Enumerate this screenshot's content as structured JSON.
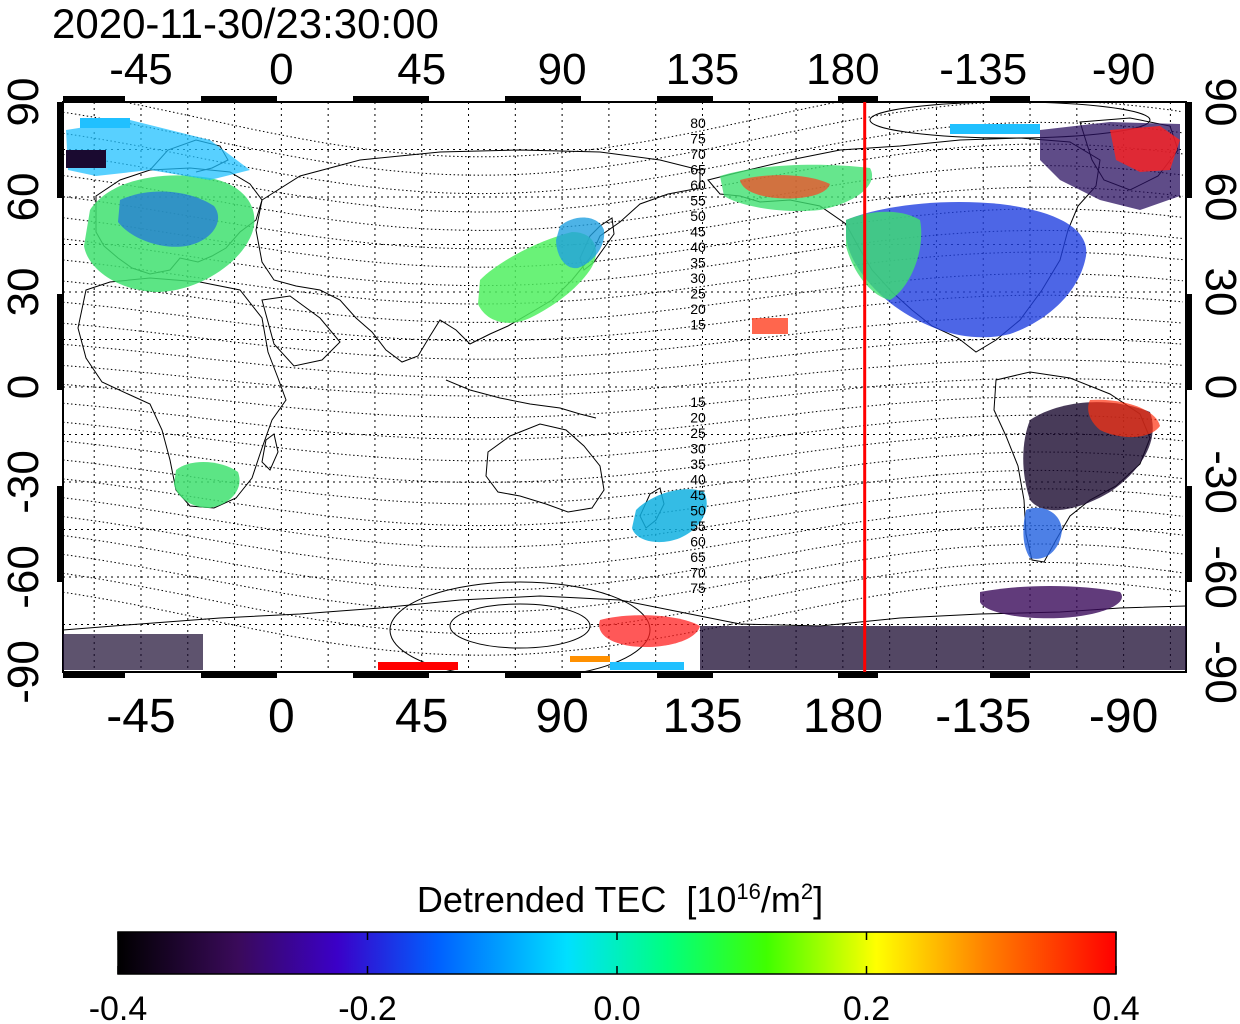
{
  "map": {
    "timestamp": "2020-11-30/23:30:00",
    "projection": "equirectangular",
    "center_longitude": 110,
    "lon_ticks_top": [
      "0",
      "45",
      "90",
      "135",
      "180",
      "-135",
      "-90",
      "-45"
    ],
    "lon_ticks_bottom": [
      "0",
      "45",
      "90",
      "135",
      "180",
      "-135",
      "-90",
      "-45"
    ],
    "lat_ticks_left": [
      "90",
      "60",
      "30",
      "0",
      "-30",
      "-60",
      "-90"
    ],
    "lat_ticks_right": [
      "90",
      "60",
      "30",
      "0",
      "-30",
      "-60",
      "-90"
    ],
    "terminator_longitude": 187,
    "terminator_color": "#ff0000",
    "contour_labels_north": [
      "80",
      "75",
      "70",
      "65",
      "60",
      "55",
      "50",
      "45",
      "40",
      "35",
      "30",
      "25",
      "20",
      "15"
    ],
    "contour_labels_south": [
      "15",
      "20",
      "25",
      "30",
      "35",
      "40",
      "45",
      "50",
      "55",
      "60",
      "65",
      "70",
      "75"
    ],
    "grid": "dotted"
  },
  "colorbar": {
    "title": "Detrended TEC",
    "unit_prefix": "[10",
    "unit_exp1": "16",
    "unit_mid": "/m",
    "unit_exp2": "2",
    "unit_suffix": "]",
    "min": -0.4,
    "max": 0.4,
    "tick_labels": [
      "-0.4",
      "-0.2",
      "0.0",
      "0.2",
      "0.4"
    ],
    "colors": [
      "#000000",
      "#3a0a5a",
      "#3b00c8",
      "#0060ff",
      "#00e0ff",
      "#00ff80",
      "#40ff00",
      "#ffff00",
      "#ff8000",
      "#ff0000"
    ]
  }
}
